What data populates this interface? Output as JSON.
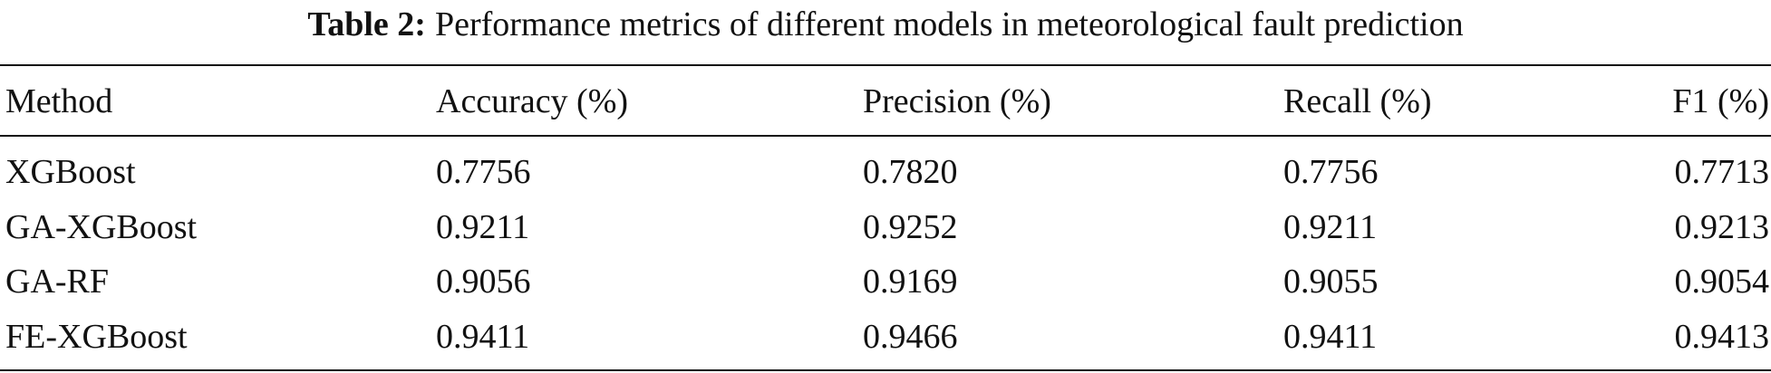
{
  "caption": {
    "label": "Table 2:",
    "text": "Performance metrics of different models in meteorological fault prediction"
  },
  "table": {
    "header": [
      "Method",
      "Accuracy (%)",
      "Precision (%)",
      "Recall (%)",
      "F1 (%)"
    ],
    "rows": [
      [
        "XGBoost",
        "0.7756",
        "0.7820",
        "0.7756",
        "0.7713"
      ],
      [
        "GA-XGBoost",
        "0.9211",
        "0.9252",
        "0.9211",
        "0.9213"
      ],
      [
        "GA-RF",
        "0.9056",
        "0.9169",
        "0.9055",
        "0.9054"
      ],
      [
        "FE-XGBoost",
        "0.9411",
        "0.9466",
        "0.9411",
        "0.9413"
      ]
    ]
  }
}
